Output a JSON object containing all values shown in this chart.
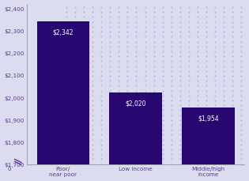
{
  "categories": [
    "Poor/\nnear poor",
    "Low income",
    "Middle/high\nincome"
  ],
  "values": [
    2342,
    2020,
    1954
  ],
  "bar_labels": [
    "$2,342",
    "$2,020",
    "$1,954"
  ],
  "bar_color": "#280870",
  "background_color": "#dcdcf0",
  "dot_color": "#b8b8e0",
  "ylim_display": [
    1700,
    2420
  ],
  "yticks": [
    1700,
    1800,
    1900,
    2000,
    2100,
    2200,
    2300,
    2400
  ],
  "ytick_labels": [
    "$1,700",
    "$1,800",
    "$1,900",
    "$2,000",
    "$2,100",
    "$2,200",
    "$2,300",
    "$2,400"
  ],
  "label_fontsize": 5.2,
  "bar_label_fontsize": 5.5,
  "tick_color": "#5a3a8a",
  "axis_label_color": "#5a3a8a",
  "bar_width": 0.72
}
